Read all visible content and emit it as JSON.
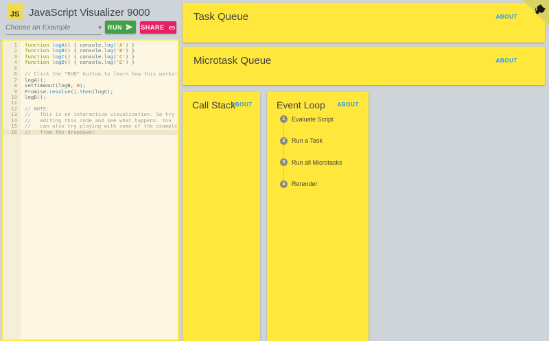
{
  "app": {
    "logo_text": "JS",
    "title": "JavaScript Visualizer 9000"
  },
  "toolbar": {
    "example_select": "Choose an Example",
    "run_label": "RUN",
    "share_label": "SHARE"
  },
  "editor": {
    "active_line": 16,
    "lines": [
      "function logA() { console.log('A') }",
      "function logB() { console.log('B') }",
      "function logC() { console.log('C') }",
      "function logD() { console.log('D') }",
      "",
      "// Click the \"RUN\" button to learn how this works!",
      "logA();",
      "setTimeout(logB, 0);",
      "Promise.resolve().then(logC);",
      "logD();",
      "",
      "// NOTE:",
      "//   This is an interactive visualization. So try",
      "//   editing this code and see what happens. You",
      "//   can also try playing with some of the examples",
      "//   from the dropdown!"
    ]
  },
  "panels": {
    "task_queue": {
      "title": "Task Queue",
      "about": "ABOUT"
    },
    "microtask_queue": {
      "title": "Microtask Queue",
      "about": "ABOUT"
    },
    "call_stack": {
      "title": "Call Stack",
      "about": "ABOUT"
    },
    "event_loop": {
      "title": "Event Loop",
      "about": "ABOUT",
      "steps": [
        {
          "number": "1",
          "label": "Evaluate Script"
        },
        {
          "number": "2",
          "label": "Run a Task"
        },
        {
          "number": "3",
          "label": "Run all Microtasks"
        },
        {
          "number": "4",
          "label": "Rerender"
        }
      ]
    }
  },
  "icons": {
    "dropdown_caret": "▾",
    "run_icon": "send-icon",
    "share_icon": "link-icon",
    "corner_icon": "github-octocat"
  },
  "colors": {
    "panel_yellow": "#ffe73b",
    "background_grey": "#ced4d8",
    "about_blue": "#2196f3",
    "run_green": "#43a047",
    "share_pink": "#e91e63",
    "editor_bg": "#fdf6e3",
    "js_logo_yellow": "#f0db4f"
  }
}
